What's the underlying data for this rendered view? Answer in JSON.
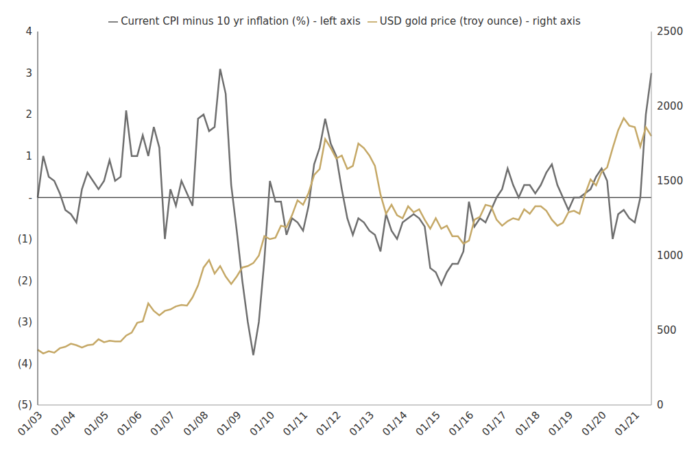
{
  "chart_data": {
    "type": "line",
    "categories": [
      "01/03",
      null,
      null,
      null,
      null,
      null,
      "01/04",
      null,
      null,
      null,
      null,
      null,
      "01/05",
      null,
      null,
      null,
      null,
      null,
      "01/06",
      null,
      null,
      null,
      null,
      null,
      "01/07",
      null,
      null,
      null,
      null,
      null,
      "01/08",
      null,
      null,
      null,
      null,
      null,
      "01/09",
      null,
      null,
      null,
      null,
      null,
      "01/10",
      null,
      null,
      null,
      null,
      null,
      "01/11",
      null,
      null,
      null,
      null,
      null,
      "01/12",
      null,
      null,
      null,
      null,
      null,
      "01/13",
      null,
      null,
      null,
      null,
      null,
      "01/14",
      null,
      null,
      null,
      null,
      null,
      "01/15",
      null,
      null,
      null,
      null,
      null,
      "01/16",
      null,
      null,
      null,
      null,
      null,
      "01/17",
      null,
      null,
      null,
      null,
      null,
      "01/18",
      null,
      null,
      null,
      null,
      null,
      "01/19",
      null,
      null,
      null,
      null,
      null,
      "01/20",
      null,
      null,
      null,
      null,
      null,
      "01/21",
      null,
      null,
      null
    ],
    "series": [
      {
        "name": "Current CPI minus 10 yr inflation (%) - left axis",
        "color": "#6e6e6e",
        "values": [
          0.0,
          1.0,
          0.5,
          0.4,
          0.1,
          -0.3,
          -0.4,
          -0.6,
          0.2,
          0.6,
          0.4,
          0.2,
          0.4,
          0.9,
          0.4,
          0.5,
          2.1,
          1.0,
          1.0,
          1.5,
          1.0,
          1.7,
          1.2,
          -1.0,
          0.2,
          -0.2,
          0.4,
          0.1,
          -0.2,
          1.9,
          2.0,
          1.6,
          1.7,
          3.1,
          2.5,
          0.3,
          -0.8,
          -2.0,
          -3.0,
          -3.8,
          -3.0,
          -1.5,
          0.4,
          -0.1,
          -0.1,
          -0.9,
          -0.5,
          -0.6,
          -0.8,
          -0.2,
          0.8,
          1.2,
          1.9,
          1.3,
          1.0,
          0.2,
          -0.5,
          -0.9,
          -0.5,
          -0.6,
          -0.8,
          -0.9,
          -1.3,
          -0.4,
          -0.8,
          -1.0,
          -0.6,
          -0.5,
          -0.4,
          -0.5,
          -0.7,
          -1.7,
          -1.8,
          -2.1,
          -1.8,
          -1.6,
          -1.6,
          -1.3,
          -0.1,
          -0.7,
          -0.5,
          -0.6,
          -0.3,
          0.0,
          0.2,
          0.7,
          0.3,
          0.0,
          0.3,
          0.3,
          0.1,
          0.3,
          0.6,
          0.8,
          0.3,
          0.0,
          -0.3,
          0.0,
          0.0,
          0.1,
          0.2,
          0.5,
          0.7,
          0.4,
          -1.0,
          -0.4,
          -0.3,
          -0.5,
          -0.6,
          0.0,
          2.0,
          3.0
        ]
      },
      {
        "name": "USD gold price (troy ounce) - right axis",
        "color": "#c5a866",
        "axis": "y2",
        "values": [
          370,
          345,
          360,
          350,
          380,
          390,
          410,
          400,
          385,
          400,
          405,
          440,
          420,
          430,
          425,
          425,
          465,
          485,
          550,
          560,
          680,
          630,
          600,
          630,
          640,
          660,
          670,
          665,
          720,
          800,
          920,
          970,
          880,
          930,
          860,
          810,
          860,
          920,
          930,
          950,
          1000,
          1130,
          1110,
          1120,
          1200,
          1190,
          1270,
          1370,
          1340,
          1420,
          1540,
          1580,
          1780,
          1720,
          1650,
          1670,
          1580,
          1600,
          1750,
          1720,
          1670,
          1600,
          1410,
          1280,
          1340,
          1270,
          1250,
          1330,
          1290,
          1310,
          1240,
          1180,
          1250,
          1180,
          1200,
          1130,
          1130,
          1080,
          1100,
          1240,
          1260,
          1340,
          1330,
          1240,
          1200,
          1230,
          1250,
          1240,
          1310,
          1280,
          1330,
          1330,
          1300,
          1240,
          1200,
          1220,
          1290,
          1300,
          1280,
          1410,
          1510,
          1470,
          1560,
          1590,
          1720,
          1840,
          1920,
          1870,
          1860,
          1730,
          1860,
          1800
        ]
      }
    ],
    "ylim": [
      -5,
      4
    ],
    "yticks": [
      {
        "value": -5,
        "label": "(5)"
      },
      {
        "value": -4,
        "label": "(4)"
      },
      {
        "value": -3,
        "label": "(3)"
      },
      {
        "value": -2,
        "label": "(2)"
      },
      {
        "value": -1,
        "label": "(1)"
      },
      {
        "value": 0,
        "label": "-"
      },
      1,
      2,
      3,
      4
    ],
    "y2lim": [
      0,
      2500
    ],
    "y2ticks": [
      0,
      500,
      1000,
      1500,
      2000,
      2500
    ],
    "legend": "top",
    "grid": false
  }
}
